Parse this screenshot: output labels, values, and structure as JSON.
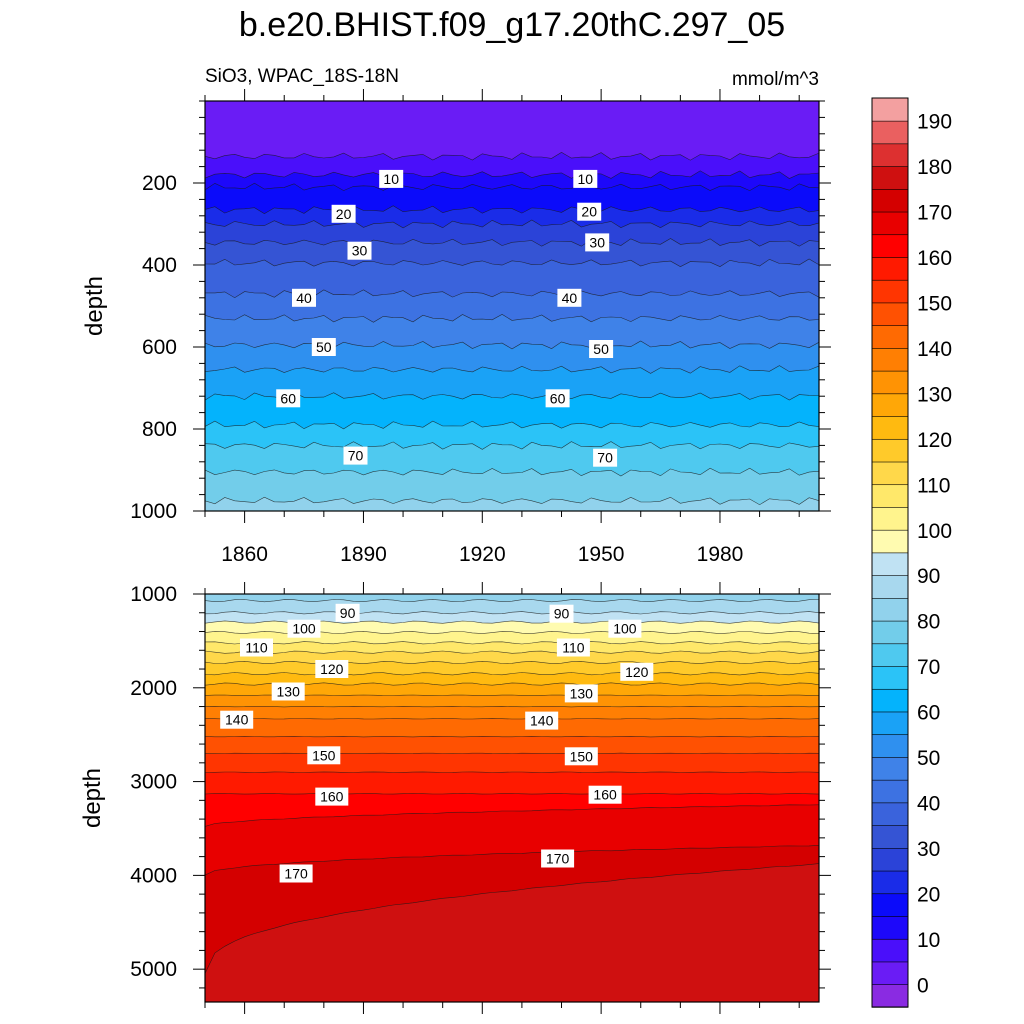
{
  "chart_data": {
    "type": "heatmap",
    "title": "b.e20.BHIST.f09_g17.20thC.297_05",
    "subtitle_left": "SiO3, WPAC_18S-18N",
    "subtitle_right": "mmol/m^3",
    "xlabel": "",
    "ylabel": "depth",
    "xlim": [
      1850,
      2005
    ],
    "x_ticks": [
      1860,
      1890,
      1920,
      1950,
      1980
    ],
    "panels": [
      {
        "name": "upper",
        "ylim": [
          0,
          1000
        ],
        "y_ticks": [
          200,
          400,
          600,
          800,
          1000
        ],
        "contours": [
          {
            "value": 5,
            "depth": 135
          },
          {
            "value": 10,
            "depth": 180
          },
          {
            "value": 15,
            "depth": 210
          },
          {
            "value": 20,
            "depth": 265
          },
          {
            "value": 25,
            "depth": 300
          },
          {
            "value": 30,
            "depth": 345
          },
          {
            "value": 35,
            "depth": 395
          },
          {
            "value": 40,
            "depth": 470
          },
          {
            "value": 45,
            "depth": 530
          },
          {
            "value": 50,
            "depth": 595
          },
          {
            "value": 55,
            "depth": 655
          },
          {
            "value": 60,
            "depth": 720
          },
          {
            "value": 65,
            "depth": 790
          },
          {
            "value": 70,
            "depth": 840
          },
          {
            "value": 75,
            "depth": 905
          },
          {
            "value": 80,
            "depth": 975
          }
        ],
        "labels": [
          {
            "text": "10",
            "x": 1897,
            "y": 190
          },
          {
            "text": "10",
            "x": 1946,
            "y": 190
          },
          {
            "text": "20",
            "x": 1885,
            "y": 275
          },
          {
            "text": "20",
            "x": 1947,
            "y": 270
          },
          {
            "text": "30",
            "x": 1889,
            "y": 365
          },
          {
            "text": "30",
            "x": 1949,
            "y": 345
          },
          {
            "text": "40",
            "x": 1875,
            "y": 480
          },
          {
            "text": "40",
            "x": 1942,
            "y": 480
          },
          {
            "text": "50",
            "x": 1880,
            "y": 600
          },
          {
            "text": "50",
            "x": 1950,
            "y": 605
          },
          {
            "text": "60",
            "x": 1871,
            "y": 725
          },
          {
            "text": "60",
            "x": 1939,
            "y": 725
          },
          {
            "text": "70",
            "x": 1888,
            "y": 865
          },
          {
            "text": "70",
            "x": 1951,
            "y": 870
          }
        ]
      },
      {
        "name": "lower",
        "ylim": [
          1000,
          5350
        ],
        "y_ticks": [
          1000,
          2000,
          3000,
          4000,
          5000
        ],
        "contours": [
          {
            "value": 85,
            "depth": 1070
          },
          {
            "value": 90,
            "depth": 1200
          },
          {
            "value": 95,
            "depth": 1300
          },
          {
            "value": 100,
            "depth": 1410
          },
          {
            "value": 105,
            "depth": 1520
          },
          {
            "value": 110,
            "depth": 1620
          },
          {
            "value": 115,
            "depth": 1730
          },
          {
            "value": 120,
            "depth": 1850
          },
          {
            "value": 125,
            "depth": 1960
          },
          {
            "value": 130,
            "depth": 2080
          },
          {
            "value": 135,
            "depth": 2200
          },
          {
            "value": 140,
            "depth": 2330
          },
          {
            "value": 145,
            "depth": 2520
          },
          {
            "value": 150,
            "depth": 2700
          },
          {
            "value": 155,
            "depth": 2900
          },
          {
            "value": 160,
            "depth": 3130
          },
          {
            "value": 165,
            "depth": 3480
          },
          {
            "value": 170,
            "depth": 4000
          },
          {
            "value": 175,
            "depth": 5050
          }
        ],
        "labels": [
          {
            "text": "90",
            "x": 1886,
            "y": 1200
          },
          {
            "text": "90",
            "x": 1940,
            "y": 1210
          },
          {
            "text": "100",
            "x": 1875,
            "y": 1370
          },
          {
            "text": "100",
            "x": 1956,
            "y": 1370
          },
          {
            "text": "110",
            "x": 1863,
            "y": 1570
          },
          {
            "text": "110",
            "x": 1943,
            "y": 1570
          },
          {
            "text": "120",
            "x": 1882,
            "y": 1800
          },
          {
            "text": "120",
            "x": 1959,
            "y": 1830
          },
          {
            "text": "130",
            "x": 1871,
            "y": 2040
          },
          {
            "text": "130",
            "x": 1945,
            "y": 2060
          },
          {
            "text": "140",
            "x": 1858,
            "y": 2340
          },
          {
            "text": "140",
            "x": 1935,
            "y": 2350
          },
          {
            "text": "150",
            "x": 1880,
            "y": 2720
          },
          {
            "text": "150",
            "x": 1945,
            "y": 2730
          },
          {
            "text": "160",
            "x": 1882,
            "y": 3160
          },
          {
            "text": "160",
            "x": 1951,
            "y": 3140
          },
          {
            "text": "170",
            "x": 1873,
            "y": 3980
          },
          {
            "text": "170",
            "x": 1939,
            "y": 3820
          }
        ]
      }
    ],
    "colorbar": {
      "levels": [
        -5,
        0,
        5,
        10,
        15,
        20,
        25,
        30,
        35,
        40,
        45,
        50,
        55,
        60,
        65,
        70,
        75,
        80,
        85,
        90,
        95,
        100,
        105,
        110,
        115,
        120,
        125,
        130,
        135,
        140,
        145,
        150,
        155,
        160,
        165,
        170,
        175,
        180,
        185,
        190,
        195
      ],
      "tick_labels": [
        "0",
        "10",
        "20",
        "30",
        "40",
        "50",
        "60",
        "70",
        "80",
        "90",
        "100",
        "110",
        "120",
        "130",
        "140",
        "150",
        "160",
        "170",
        "180",
        "190"
      ],
      "tick_values": [
        0,
        10,
        20,
        30,
        40,
        50,
        60,
        70,
        80,
        90,
        100,
        110,
        120,
        130,
        140,
        150,
        160,
        170,
        180,
        190
      ],
      "colors": [
        "#8a2be2",
        "#6a1cf5",
        "#4a0ffa",
        "#1d08fa",
        "#0b0bfa",
        "#1a2ce8",
        "#2b43d8",
        "#3554d4",
        "#3a63dc",
        "#3d72e2",
        "#3f82e8",
        "#2f90ef",
        "#1aa2f6",
        "#04b3fc",
        "#2bc3f7",
        "#4fc9ef",
        "#72cdea",
        "#91d2ec",
        "#a8d8ee",
        "#c0e2f3",
        "#fffbb0",
        "#fff48d",
        "#ffe86a",
        "#ffd84a",
        "#ffca2a",
        "#ffba10",
        "#ffa707",
        "#ff9304",
        "#ff7f03",
        "#ff6a02",
        "#ff5102",
        "#ff3501",
        "#ff1a00",
        "#ff0000",
        "#e80000",
        "#d40000",
        "#cf1010",
        "#dd3030",
        "#ea6060",
        "#f3a0a0"
      ]
    }
  }
}
